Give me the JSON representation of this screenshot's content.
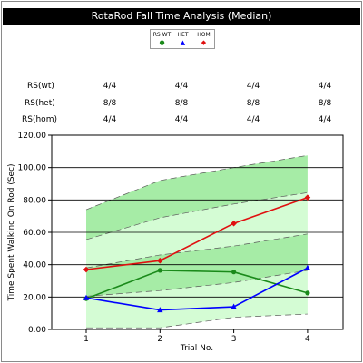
{
  "title": "RotaRod Fall Time Analysis (Median)",
  "legend": [
    {
      "label": "RS WT",
      "color": "#1a8a1a",
      "marker": "circle"
    },
    {
      "label": "HET",
      "color": "#0000ff",
      "marker": "triangle"
    },
    {
      "label": "HOM",
      "color": "#e01010",
      "marker": "diamond"
    }
  ],
  "counts": {
    "rows": [
      {
        "label": "RS(wt)",
        "values": [
          "4/4",
          "4/4",
          "4/4",
          "4/4"
        ]
      },
      {
        "label": "RS(het)",
        "values": [
          "8/8",
          "8/8",
          "8/8",
          "8/8"
        ]
      },
      {
        "label": "RS(hom)",
        "values": [
          "4/4",
          "4/4",
          "4/4",
          "4/4"
        ]
      }
    ]
  },
  "chart_data": {
    "type": "line",
    "title": "RotaRod Fall Time Analysis (Median)",
    "xlabel": "Trial No.",
    "ylabel": "Time Spent Walking On Rod (Sec)",
    "x": [
      1,
      2,
      3,
      4
    ],
    "x_tick_labels": [
      "1",
      "2",
      "3",
      "4"
    ],
    "ylim": [
      0,
      120
    ],
    "y_ticks": [
      0,
      20,
      40,
      60,
      80,
      100,
      120
    ],
    "y_tick_labels": [
      "0.00",
      "20.00",
      "40.00",
      "60.00",
      "80.00",
      "100.00",
      "120.00"
    ],
    "grid": true,
    "series": [
      {
        "name": "RS WT",
        "color": "#1a8a1a",
        "marker": "circle",
        "values": [
          19,
          36.5,
          35.5,
          22.5
        ]
      },
      {
        "name": "HET",
        "color": "#0000ff",
        "marker": "triangle",
        "values": [
          19.5,
          12,
          14,
          38
        ]
      },
      {
        "name": "HOM",
        "color": "#e01010",
        "marker": "diamond",
        "values": [
          37,
          42.5,
          65.5,
          81.5
        ]
      }
    ],
    "bands": [
      {
        "color": "#a6eca6",
        "upper": [
          74,
          92,
          100,
          107.5
        ],
        "lower": [
          55.5,
          69,
          77.5,
          84.5
        ]
      },
      {
        "color": "#d4fcd4",
        "upper": [
          55.5,
          69,
          77.5,
          84.5
        ],
        "lower": [
          38,
          46,
          51.5,
          59
        ]
      },
      {
        "color": "#d4fcd4",
        "upper": [
          20.5,
          24,
          29,
          36.5
        ],
        "lower": [
          1,
          1,
          7.5,
          9.5
        ]
      },
      {
        "color": "#a6eca6",
        "upper": [
          38,
          46,
          51.5,
          59
        ],
        "lower": [
          20.5,
          24,
          29,
          36.5
        ]
      }
    ]
  }
}
